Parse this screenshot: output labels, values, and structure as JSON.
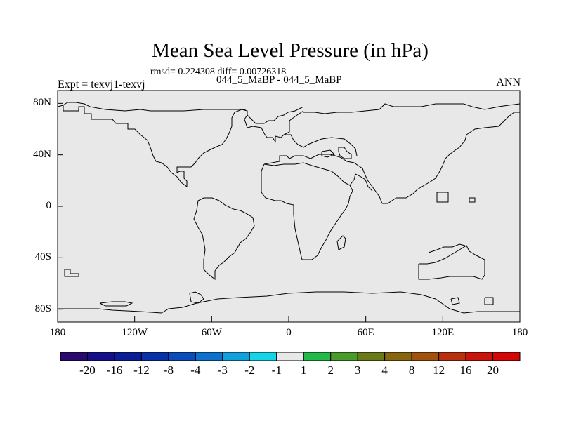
{
  "title": "Mean Sea Level Pressure (in hPa)",
  "stats": "rmsd= 0.224308 diff= 0.00726318",
  "case_label": "044_5_MaBP - 044_5_MaBP",
  "expt_label": "Expt = texvj1-texvj",
  "season": "ANN",
  "map": {
    "lon_ticks": [
      {
        "value": -180,
        "label": "180"
      },
      {
        "value": -120,
        "label": "120W"
      },
      {
        "value": -60,
        "label": "60W"
      },
      {
        "value": 0,
        "label": "0"
      },
      {
        "value": 60,
        "label": "60E"
      },
      {
        "value": 120,
        "label": "120E"
      },
      {
        "value": 180,
        "label": "180"
      }
    ],
    "lat_ticks": [
      {
        "value": 80,
        "label": "80N"
      },
      {
        "value": 40,
        "label": "40N"
      },
      {
        "value": 0,
        "label": "0"
      },
      {
        "value": -40,
        "label": "40S"
      },
      {
        "value": -80,
        "label": "80S"
      }
    ],
    "lon_range": [
      -180,
      180
    ],
    "lat_range": [
      -90,
      90
    ],
    "field_color": "#e8e8e8"
  },
  "colorbar": {
    "labels": [
      "-20",
      "-16",
      "-12",
      "-8",
      "-4",
      "-3",
      "-2",
      "-1",
      "1",
      "2",
      "3",
      "4",
      "8",
      "12",
      "16",
      "20"
    ],
    "colors": [
      "#2a0a6e",
      "#15108a",
      "#0b1e96",
      "#0832a8",
      "#0a4cb8",
      "#0e72cc",
      "#12a0dc",
      "#16d4e6",
      "#e8e8e8",
      "#22b84a",
      "#4a9a2c",
      "#6a7a18",
      "#886610",
      "#a0520e",
      "#b8300c",
      "#c8140a",
      "#d40606"
    ]
  }
}
